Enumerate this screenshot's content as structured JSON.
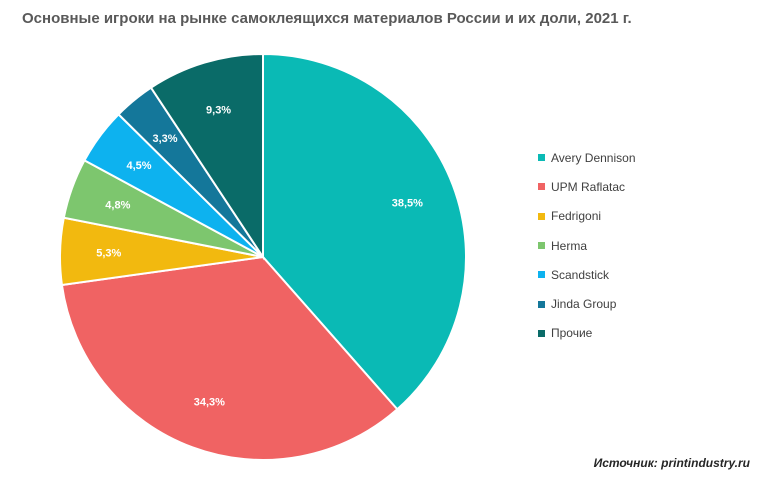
{
  "chart_data": {
    "type": "pie",
    "title": "Основные игроки на рынке самоклеящихся материалов России и их доли, 2021 г.",
    "legend_position": "right",
    "slices": [
      {
        "name": "Avery Dennison",
        "value": 38.5,
        "label": "38,5%",
        "color": "#0ABAB5"
      },
      {
        "name": "UPM Raflatac",
        "value": 34.3,
        "label": "34,3%",
        "color": "#F06363"
      },
      {
        "name": "Fedrigoni",
        "value": 5.3,
        "label": "5,3%",
        "color": "#F2B90F"
      },
      {
        "name": "Herma",
        "value": 4.8,
        "label": "4,8%",
        "color": "#7DC66E"
      },
      {
        "name": "Scandstick",
        "value": 4.5,
        "label": "4,5%",
        "color": "#0DB2EF"
      },
      {
        "name": "Jinda Group",
        "value": 3.3,
        "label": "3,3%",
        "color": "#14779A"
      },
      {
        "name": "Прочие",
        "value": 9.3,
        "label": "9,3%",
        "color": "#0A6B68"
      }
    ]
  },
  "source": "Источник: printindustry.ru"
}
